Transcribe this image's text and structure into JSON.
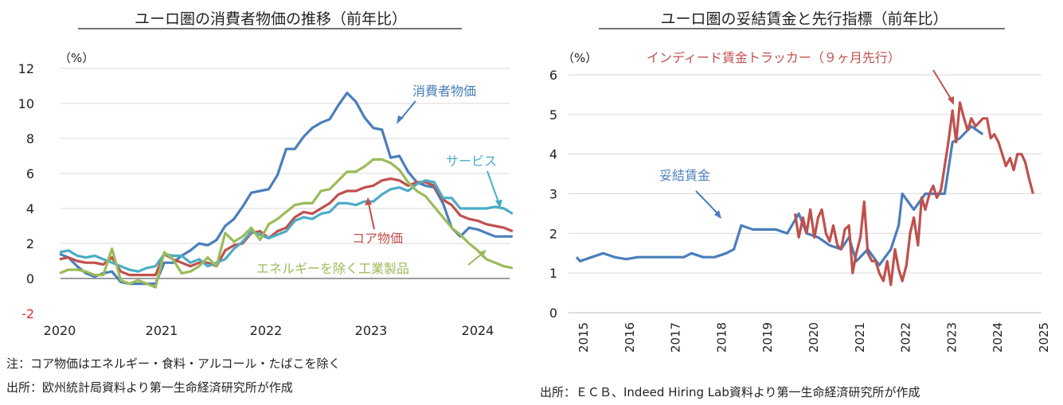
{
  "chart_data": [
    {
      "type": "line",
      "title": "ユーロ圏の消費者物価の推移（前年比）",
      "unit_label": "（%）",
      "ylim": [
        -2,
        12
      ],
      "yticks": [
        "12",
        "10",
        "8",
        "6",
        "4",
        "2",
        "0",
        "-2"
      ],
      "xlabels": [
        "2020",
        "2021",
        "2022",
        "2023",
        "2024"
      ],
      "x_start": "2020-01",
      "x_end": "2024-05",
      "grid": true,
      "series": [
        {
          "name": "消費者物価",
          "color": "#4a7ebb",
          "width": 3.2,
          "values": [
            1.4,
            1.2,
            0.7,
            0.3,
            0.1,
            0.3,
            0.4,
            -0.2,
            -0.3,
            -0.3,
            -0.3,
            -0.3,
            0.9,
            0.9,
            1.3,
            1.6,
            2.0,
            1.9,
            2.2,
            3.0,
            3.4,
            4.1,
            4.9,
            5.0,
            5.1,
            5.9,
            7.4,
            7.4,
            8.1,
            8.6,
            8.9,
            9.1,
            9.9,
            10.6,
            10.1,
            9.2,
            8.6,
            8.5,
            6.9,
            7.0,
            6.1,
            5.5,
            5.3,
            5.2,
            4.3,
            2.9,
            2.4,
            2.9,
            2.8,
            2.6,
            2.4,
            2.4,
            2.4
          ]
        },
        {
          "name": "コア物価",
          "color": "#c0504d",
          "width": 3.2,
          "values": [
            1.1,
            1.2,
            1.0,
            0.9,
            0.9,
            0.8,
            1.2,
            0.4,
            0.2,
            0.2,
            0.2,
            0.2,
            1.4,
            1.1,
            0.9,
            0.7,
            0.9,
            0.9,
            0.7,
            1.6,
            1.9,
            2.0,
            2.6,
            2.7,
            2.3,
            2.7,
            2.9,
            3.5,
            3.8,
            3.7,
            4.0,
            4.3,
            4.8,
            5.0,
            5.0,
            5.2,
            5.3,
            5.6,
            5.7,
            5.6,
            5.3,
            5.5,
            5.5,
            5.3,
            4.5,
            4.2,
            3.6,
            3.4,
            3.3,
            3.1,
            3.0,
            2.9,
            2.7
          ]
        },
        {
          "name": "サービス",
          "color": "#4bacc6",
          "width": 3.2,
          "values": [
            1.5,
            1.6,
            1.3,
            1.2,
            1.3,
            1.1,
            0.9,
            0.7,
            0.5,
            0.4,
            0.6,
            0.7,
            1.4,
            1.3,
            1.3,
            0.9,
            1.1,
            0.7,
            0.9,
            1.1,
            1.7,
            2.1,
            2.7,
            2.5,
            2.3,
            2.5,
            2.7,
            3.3,
            3.5,
            3.4,
            3.7,
            3.8,
            4.3,
            4.3,
            4.2,
            4.4,
            4.4,
            4.8,
            5.1,
            5.2,
            5.0,
            5.4,
            5.6,
            5.5,
            4.6,
            4.6,
            4.0,
            4.0,
            4.0,
            4.0,
            4.1,
            4.0,
            3.7
          ]
        },
        {
          "name": "エネルギーを除く工業製品",
          "color": "#9bbb59",
          "width": 3.2,
          "values": [
            0.3,
            0.5,
            0.5,
            0.4,
            0.2,
            0.2,
            1.7,
            -0.1,
            -0.3,
            -0.1,
            -0.3,
            -0.5,
            1.5,
            1.1,
            0.3,
            0.4,
            0.7,
            1.2,
            0.7,
            2.6,
            2.1,
            2.4,
            2.9,
            2.2,
            3.1,
            3.4,
            3.8,
            4.2,
            4.3,
            4.3,
            5.0,
            5.1,
            5.6,
            6.1,
            6.1,
            6.4,
            6.8,
            6.8,
            6.6,
            6.2,
            5.5,
            5.0,
            4.7,
            4.1,
            3.5,
            2.9,
            2.5,
            2.0,
            1.6,
            1.1,
            0.9,
            0.7,
            0.6
          ]
        }
      ],
      "annotations": [
        "消費者物価",
        "サービス",
        "コア物価",
        "エネルギーを除く工業製品"
      ]
    },
    {
      "type": "line",
      "title": "ユーロ圏の妥結賃金と先行指標（前年比）",
      "unit_label": "（%）",
      "ylim": [
        0,
        6
      ],
      "yticks": [
        "6",
        "5",
        "4",
        "3",
        "2",
        "1",
        "0"
      ],
      "xlabels": [
        "2015",
        "2016",
        "2017",
        "2018",
        "2019",
        "2020",
        "2021",
        "2022",
        "2023",
        "2024",
        "2025"
      ],
      "grid": true,
      "series": [
        {
          "name": "妥結賃金",
          "color": "#4a7ebb",
          "width": 3.2,
          "points": [
            [
              2015.0,
              1.4
            ],
            [
              2015.08,
              1.3
            ],
            [
              2015.33,
              1.4
            ],
            [
              2015.58,
              1.5
            ],
            [
              2015.83,
              1.4
            ],
            [
              2016.08,
              1.35
            ],
            [
              2016.33,
              1.4
            ],
            [
              2016.58,
              1.4
            ],
            [
              2016.83,
              1.4
            ],
            [
              2017.08,
              1.4
            ],
            [
              2017.33,
              1.4
            ],
            [
              2017.5,
              1.5
            ],
            [
              2017.75,
              1.4
            ],
            [
              2018.0,
              1.4
            ],
            [
              2018.25,
              1.5
            ],
            [
              2018.42,
              1.6
            ],
            [
              2018.58,
              2.2
            ],
            [
              2018.83,
              2.1
            ],
            [
              2019.08,
              2.1
            ],
            [
              2019.33,
              2.1
            ],
            [
              2019.58,
              2.0
            ],
            [
              2019.83,
              2.5
            ],
            [
              2020.0,
              2.0
            ],
            [
              2020.25,
              1.9
            ],
            [
              2020.5,
              1.7
            ],
            [
              2020.75,
              1.6
            ],
            [
              2020.92,
              1.9
            ],
            [
              2021.08,
              1.3
            ],
            [
              2021.33,
              1.6
            ],
            [
              2021.58,
              1.2
            ],
            [
              2021.83,
              1.6
            ],
            [
              2022.0,
              2.2
            ],
            [
              2022.08,
              3.0
            ],
            [
              2022.33,
              2.6
            ],
            [
              2022.58,
              3.0
            ],
            [
              2022.83,
              3.0
            ],
            [
              2023.0,
              3.0
            ],
            [
              2023.17,
              4.3
            ],
            [
              2023.33,
              4.4
            ],
            [
              2023.58,
              4.7
            ],
            [
              2023.83,
              4.5
            ]
          ]
        },
        {
          "name": "インディード賃金トラッカー（９ヶ月先行）",
          "color": "#c0504d",
          "width": 3.2,
          "points": [
            [
              2019.75,
              2.5
            ],
            [
              2019.83,
              1.9
            ],
            [
              2019.92,
              2.4
            ],
            [
              2020.0,
              2.0
            ],
            [
              2020.08,
              2.6
            ],
            [
              2020.17,
              1.9
            ],
            [
              2020.25,
              2.4
            ],
            [
              2020.33,
              2.6
            ],
            [
              2020.42,
              2.0
            ],
            [
              2020.5,
              1.8
            ],
            [
              2020.58,
              2.2
            ],
            [
              2020.67,
              1.7
            ],
            [
              2020.75,
              1.6
            ],
            [
              2020.83,
              2.1
            ],
            [
              2020.92,
              2.2
            ],
            [
              2021.0,
              1.0
            ],
            [
              2021.08,
              1.5
            ],
            [
              2021.17,
              1.9
            ],
            [
              2021.25,
              2.8
            ],
            [
              2021.33,
              1.5
            ],
            [
              2021.42,
              1.3
            ],
            [
              2021.5,
              1.3
            ],
            [
              2021.58,
              1.0
            ],
            [
              2021.67,
              0.8
            ],
            [
              2021.75,
              1.3
            ],
            [
              2021.83,
              0.7
            ],
            [
              2021.92,
              1.6
            ],
            [
              2022.0,
              1.1
            ],
            [
              2022.08,
              0.8
            ],
            [
              2022.17,
              1.2
            ],
            [
              2022.25,
              2.0
            ],
            [
              2022.33,
              2.4
            ],
            [
              2022.42,
              1.7
            ],
            [
              2022.5,
              2.9
            ],
            [
              2022.58,
              2.6
            ],
            [
              2022.67,
              3.0
            ],
            [
              2022.75,
              3.2
            ],
            [
              2022.83,
              2.9
            ],
            [
              2022.92,
              3.1
            ],
            [
              2023.0,
              3.7
            ],
            [
              2023.08,
              4.3
            ],
            [
              2023.17,
              5.1
            ],
            [
              2023.25,
              4.3
            ],
            [
              2023.33,
              5.3
            ],
            [
              2023.42,
              4.9
            ],
            [
              2023.5,
              4.6
            ],
            [
              2023.58,
              4.9
            ],
            [
              2023.67,
              4.7
            ],
            [
              2023.75,
              4.8
            ],
            [
              2023.83,
              4.9
            ],
            [
              2023.92,
              4.9
            ],
            [
              2024.0,
              4.4
            ],
            [
              2024.08,
              4.5
            ],
            [
              2024.17,
              4.3
            ],
            [
              2024.25,
              4.0
            ],
            [
              2024.33,
              3.7
            ],
            [
              2024.42,
              3.9
            ],
            [
              2024.5,
              3.6
            ],
            [
              2024.58,
              4.0
            ],
            [
              2024.67,
              4.0
            ],
            [
              2024.75,
              3.8
            ],
            [
              2024.83,
              3.4
            ],
            [
              2024.92,
              3.0
            ]
          ]
        }
      ],
      "annotations": [
        "妥結賃金",
        "インディード賃金トラッカー（９ヶ月先行）"
      ]
    }
  ],
  "notes": {
    "left_note": "注：コア物価はエネルギー・食料・アルコール・たばこを除く",
    "left_source": "出所：欧州統計局資料より第一生命経済研究所が作成",
    "right_source": "出所：ＥＣＢ、Indeed Hiring Lab資料より第一生命経済研究所が作成"
  }
}
